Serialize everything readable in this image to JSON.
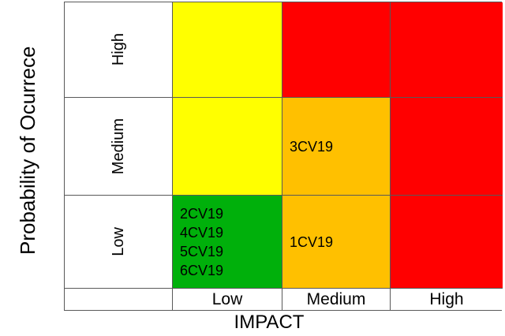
{
  "chart_data": {
    "type": "heatmap",
    "title": "",
    "xlabel": "IMPACT",
    "ylabel": "Probability of Ocurrece",
    "x_categories": [
      "Low",
      "Medium",
      "High"
    ],
    "y_categories": [
      "High",
      "Medium",
      "Low"
    ],
    "legend": "none",
    "colors": {
      "low_risk": "#00B00B",
      "medium_risk": "#FFFF00",
      "high_risk": "#FFC000",
      "extreme_risk": "#FF0000",
      "grid_line": "#595959"
    },
    "cells": [
      {
        "probability": "High",
        "impact": "Low",
        "color": "#FFFF00",
        "items": []
      },
      {
        "probability": "High",
        "impact": "Medium",
        "color": "#FF0000",
        "items": []
      },
      {
        "probability": "High",
        "impact": "High",
        "color": "#FF0000",
        "items": []
      },
      {
        "probability": "Medium",
        "impact": "Low",
        "color": "#FFFF00",
        "items": []
      },
      {
        "probability": "Medium",
        "impact": "Medium",
        "color": "#FFC000",
        "items": [
          "3CV19"
        ]
      },
      {
        "probability": "Medium",
        "impact": "High",
        "color": "#FF0000",
        "items": []
      },
      {
        "probability": "Low",
        "impact": "Low",
        "color": "#00B00B",
        "items": [
          "2CV19",
          "4CV19",
          "5CV19",
          "6CV19"
        ]
      },
      {
        "probability": "Low",
        "impact": "Medium",
        "color": "#FFC000",
        "items": [
          "1CV19"
        ]
      },
      {
        "probability": "Low",
        "impact": "High",
        "color": "#FF0000",
        "items": []
      }
    ]
  }
}
